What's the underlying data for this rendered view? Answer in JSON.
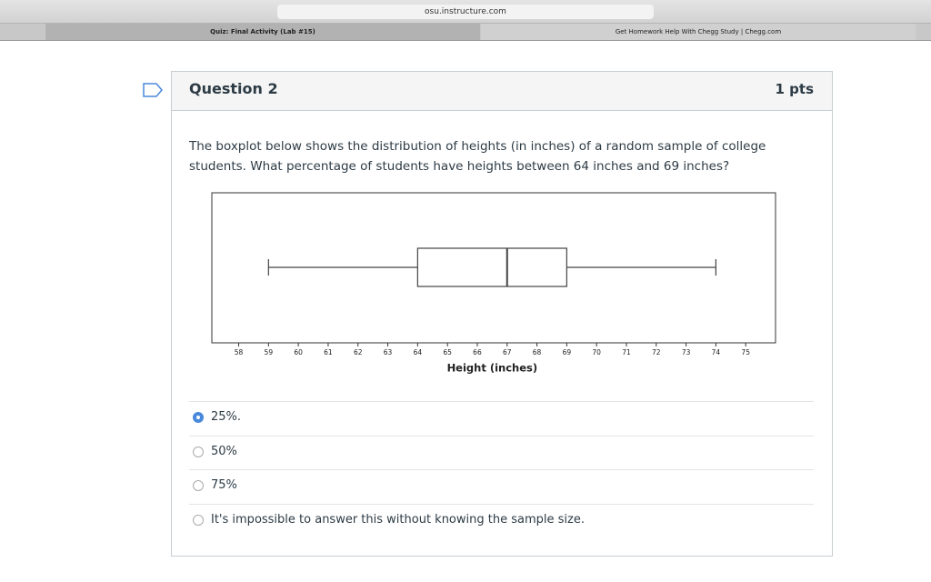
{
  "browser": {
    "url": "osu.instructure.com",
    "tabs": [
      "Quiz: Final Activity (Lab #15)",
      "Get Homework Help With Chegg Study | Chegg.com"
    ]
  },
  "question": {
    "title": "Question 2",
    "points": "1 pts",
    "text": "The boxplot below shows the distribution of heights (in inches) of a random sample of college students. What percentage of students have heights between 64 inches and 69 inches?"
  },
  "chart_data": {
    "type": "boxplot",
    "orientation": "horizontal",
    "xlabel": "Height (inches)",
    "min": 59,
    "q1": 64,
    "median": 67,
    "q3": 69,
    "max": 74,
    "xlim": [
      57.1,
      76
    ],
    "xticks": [
      58,
      59,
      60,
      61,
      62,
      63,
      64,
      65,
      66,
      67,
      68,
      69,
      70,
      71,
      72,
      73,
      74,
      75
    ],
    "color": "#444444"
  },
  "answers": {
    "options": [
      "25%.",
      "50%",
      "75%",
      "It's impossible to answer this without knowing the sample size."
    ],
    "selected": 0
  }
}
